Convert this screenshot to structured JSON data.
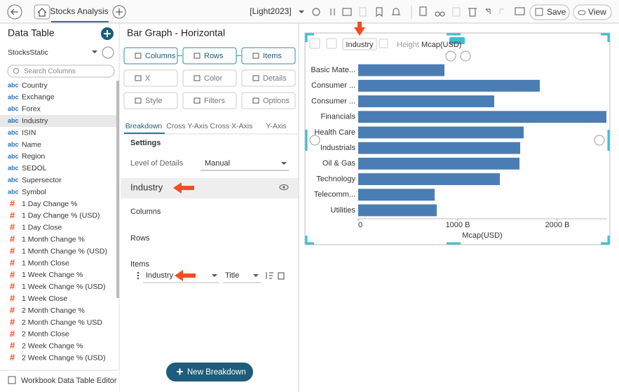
{
  "toolbar": {
    "tab": "Stocks Analysis",
    "theme": "[Light2023]",
    "save": "Save",
    "view": "View"
  },
  "data_table": {
    "title": "Data Table",
    "source": "StocksStatic",
    "search_placeholder": "Search Columns",
    "columns": [
      {
        "type": "abc",
        "name": "Country"
      },
      {
        "type": "abc",
        "name": "Exchange"
      },
      {
        "type": "abc",
        "name": "Forex"
      },
      {
        "type": "abc",
        "name": "Industry"
      },
      {
        "type": "abc",
        "name": "ISIN"
      },
      {
        "type": "abc",
        "name": "Name"
      },
      {
        "type": "abc",
        "name": "Region"
      },
      {
        "type": "abc",
        "name": "SEDOL"
      },
      {
        "type": "abc",
        "name": "Supersector"
      },
      {
        "type": "abc",
        "name": "Symbol"
      },
      {
        "type": "#",
        "name": "1 Day Change %"
      },
      {
        "type": "#",
        "name": "1 Day Change % (USD)"
      },
      {
        "type": "#",
        "name": "1 Day Close"
      },
      {
        "type": "#",
        "name": "1 Month Change %"
      },
      {
        "type": "#",
        "name": "1 Month Change % (USD)"
      },
      {
        "type": "#",
        "name": "1 Month Close"
      },
      {
        "type": "#",
        "name": "1 Week Change %"
      },
      {
        "type": "#",
        "name": "1 Week Change % (USD)"
      },
      {
        "type": "#",
        "name": "1 Week Close"
      },
      {
        "type": "#",
        "name": "2 Month Change %"
      },
      {
        "type": "#",
        "name": "2 Month Change % USD"
      },
      {
        "type": "#",
        "name": "2 Month Close"
      },
      {
        "type": "#",
        "name": "2 Week Change %"
      },
      {
        "type": "#",
        "name": "2 Week Change % (USD)"
      }
    ],
    "footer": "Workbook Data Table Editor"
  },
  "editor": {
    "title": "Bar Graph - Horizontal",
    "buttons": [
      "Columns",
      "Rows",
      "Items",
      "X",
      "Color",
      "Details",
      "Style",
      "Filters",
      "Options"
    ],
    "tabs": [
      "Breakdown",
      "Cross Y-Axis",
      "Cross X-Axis",
      "Y-Axis"
    ],
    "settings": {
      "heading": "Settings",
      "level_of_details_label": "Level of Details",
      "level_of_details": "Manual",
      "breakdown": "Industry",
      "columns_label": "Columns",
      "rows_label": "Rows",
      "items_label": "Items",
      "item": "Industry",
      "item_option": "Title"
    },
    "new_breakdown": "New Breakdown"
  },
  "chart": {
    "type": "bar",
    "orientation": "horizontal",
    "header_item": "Industry",
    "height_label": "Height",
    "height_value": "Mcap(USD)",
    "categories": [
      "Basic Mate...",
      "Consumer ...",
      "Consumer ...",
      "Financials",
      "Health Care",
      "Industrials",
      "Oil & Gas",
      "Technology",
      "Telecomm...",
      "Utilities"
    ],
    "values": [
      866,
      1824,
      1366,
      2493,
      1662,
      1627,
      1620,
      1423,
      768,
      789
    ],
    "color": "#4a7db3",
    "xlim": [
      0,
      2500
    ],
    "xticks": [
      0,
      {
        "value": 1000,
        "label": "1000 B"
      },
      {
        "value": 2000,
        "label": "2000 B"
      }
    ],
    "xlabel": "Mcap(USD)"
  }
}
